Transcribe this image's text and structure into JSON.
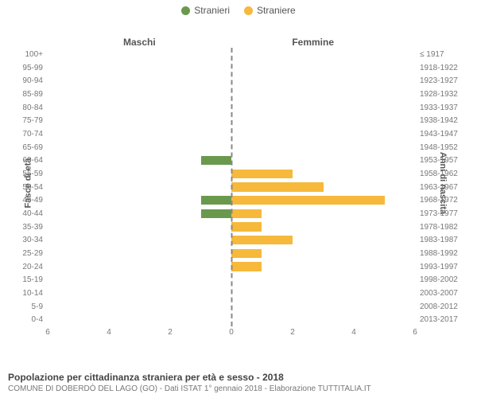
{
  "legend": {
    "male": {
      "label": "Stranieri",
      "color": "#6a994e"
    },
    "female": {
      "label": "Straniere",
      "color": "#f6b93b"
    }
  },
  "columns": {
    "left": "Maschi",
    "right": "Femmine"
  },
  "axes": {
    "left_label": "Fasce di età",
    "right_label": "Anni di nascita",
    "x_max": 6,
    "x_ticks": [
      0,
      2,
      4,
      6
    ]
  },
  "colors": {
    "male_bar": "#6a994e",
    "female_bar": "#f6b93b",
    "background": "#ffffff",
    "grid": "#888888",
    "text": "#555555"
  },
  "chart": {
    "type": "population-pyramid",
    "bar_height_ratio": 0.68
  },
  "rows": [
    {
      "age": "100+",
      "birth": "≤ 1917",
      "m": 0,
      "f": 0
    },
    {
      "age": "95-99",
      "birth": "1918-1922",
      "m": 0,
      "f": 0
    },
    {
      "age": "90-94",
      "birth": "1923-1927",
      "m": 0,
      "f": 0
    },
    {
      "age": "85-89",
      "birth": "1928-1932",
      "m": 0,
      "f": 0
    },
    {
      "age": "80-84",
      "birth": "1933-1937",
      "m": 0,
      "f": 0
    },
    {
      "age": "75-79",
      "birth": "1938-1942",
      "m": 0,
      "f": 0
    },
    {
      "age": "70-74",
      "birth": "1943-1947",
      "m": 0,
      "f": 0
    },
    {
      "age": "65-69",
      "birth": "1948-1952",
      "m": 0,
      "f": 0
    },
    {
      "age": "60-64",
      "birth": "1953-1957",
      "m": 1,
      "f": 0
    },
    {
      "age": "55-59",
      "birth": "1958-1962",
      "m": 0,
      "f": 2
    },
    {
      "age": "50-54",
      "birth": "1963-1967",
      "m": 0,
      "f": 3
    },
    {
      "age": "45-49",
      "birth": "1968-1972",
      "m": 1,
      "f": 5
    },
    {
      "age": "40-44",
      "birth": "1973-1977",
      "m": 1,
      "f": 1
    },
    {
      "age": "35-39",
      "birth": "1978-1982",
      "m": 0,
      "f": 1
    },
    {
      "age": "30-34",
      "birth": "1983-1987",
      "m": 0,
      "f": 2
    },
    {
      "age": "25-29",
      "birth": "1988-1992",
      "m": 0,
      "f": 1
    },
    {
      "age": "20-24",
      "birth": "1993-1997",
      "m": 0,
      "f": 1
    },
    {
      "age": "15-19",
      "birth": "1998-2002",
      "m": 0,
      "f": 0
    },
    {
      "age": "10-14",
      "birth": "2003-2007",
      "m": 0,
      "f": 0
    },
    {
      "age": "5-9",
      "birth": "2008-2012",
      "m": 0,
      "f": 0
    },
    {
      "age": "0-4",
      "birth": "2013-2017",
      "m": 0,
      "f": 0
    }
  ],
  "footer": {
    "title": "Popolazione per cittadinanza straniera per età e sesso - 2018",
    "subtitle": "COMUNE DI DOBERDÒ DEL LAGO (GO) - Dati ISTAT 1° gennaio 2018 - Elaborazione TUTTITALIA.IT"
  }
}
